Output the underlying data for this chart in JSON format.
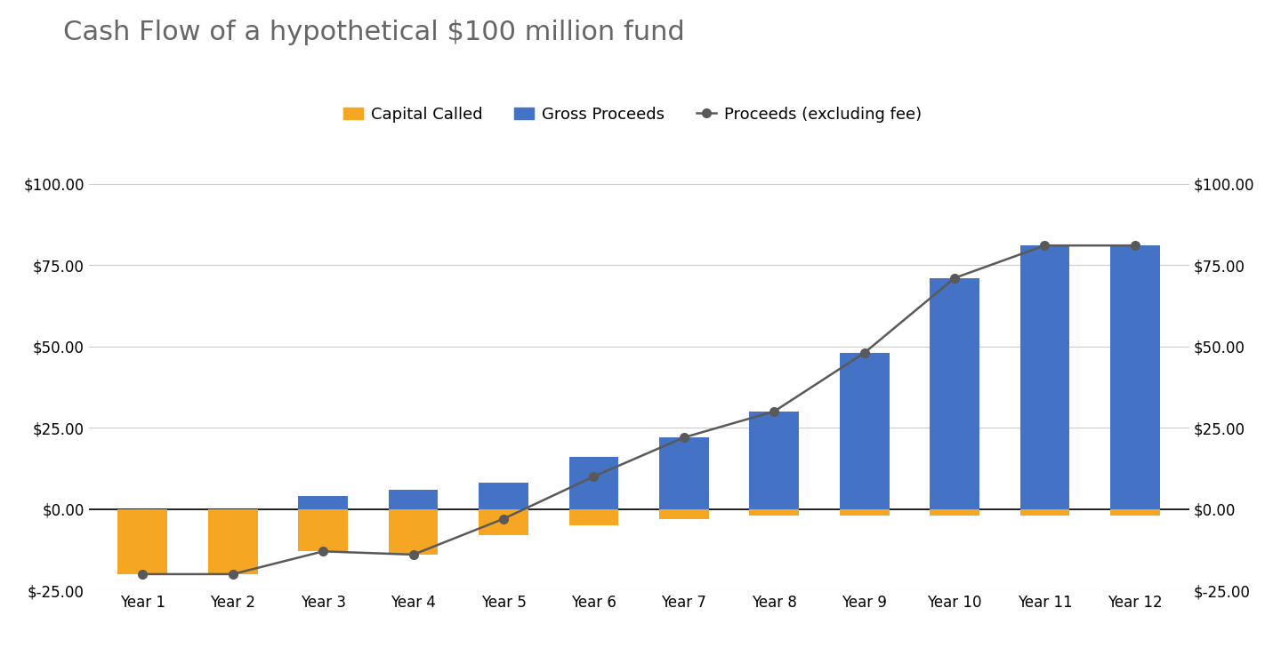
{
  "title": "Cash Flow of a hypothetical $100 million fund",
  "categories": [
    "Year 1",
    "Year 2",
    "Year 3",
    "Year 4",
    "Year 5",
    "Year 6",
    "Year 7",
    "Year 8",
    "Year 9",
    "Year 10",
    "Year 11",
    "Year 12"
  ],
  "capital_called": [
    -20,
    -20,
    -13,
    -14,
    -8,
    -5,
    -3,
    -2,
    -2,
    -2,
    -2,
    -2
  ],
  "gross_proceeds": [
    0,
    0,
    4,
    6,
    8,
    16,
    22,
    30,
    48,
    71,
    81,
    81
  ],
  "proceeds_excl_fee": [
    -20,
    -20,
    -13,
    -14,
    -3,
    10,
    22,
    30,
    48,
    71,
    81,
    81
  ],
  "bar_color_orange": "#F5A623",
  "bar_color_blue": "#4472C4",
  "line_color": "#595959",
  "marker_color": "#595959",
  "background_color": "#FFFFFF",
  "ylim": [
    -25,
    100
  ],
  "yticks": [
    -25,
    0,
    25,
    50,
    75,
    100
  ],
  "legend_labels": [
    "Capital Called",
    "Gross Proceeds",
    "Proceeds (excluding fee)"
  ],
  "title_fontsize": 22,
  "label_fontsize": 13,
  "tick_fontsize": 12
}
